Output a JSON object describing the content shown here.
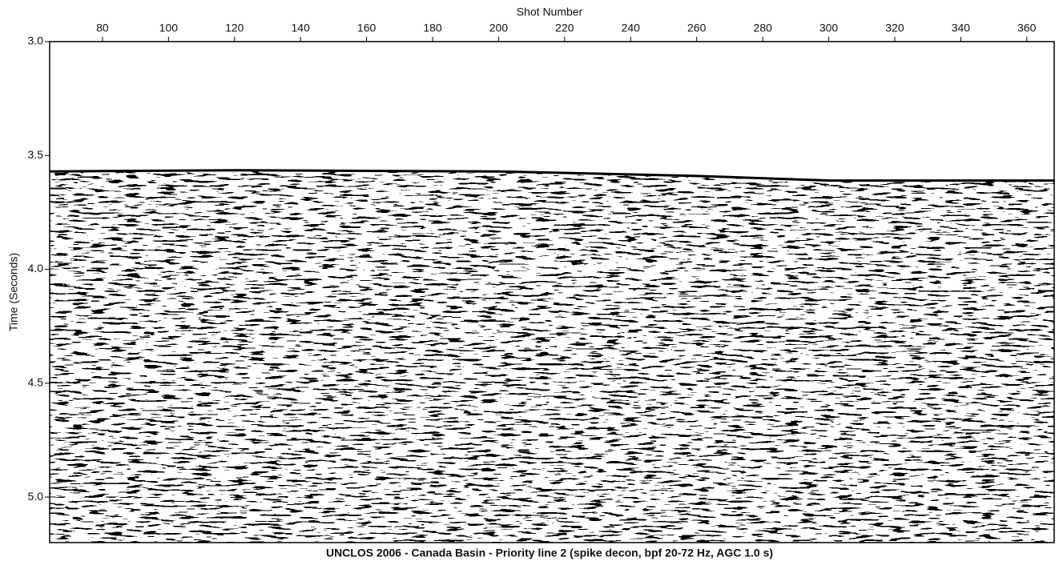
{
  "chart_data": {
    "type": "seismic",
    "title": "UNCLOS 2006 - Canada Basin - Priority line 2 (spike decon, bpf 20-72 Hz, AGC 1.0 s)",
    "x_label": "Shot Number",
    "y_label": "Time (Seconds)",
    "xlim": [
      64,
      368.3
    ],
    "ylim": [
      3.0,
      5.2
    ],
    "xticks": [
      80,
      100,
      120,
      140,
      160,
      180,
      200,
      220,
      240,
      260,
      280,
      300,
      320,
      340,
      360
    ],
    "yticks": [
      {
        "value": 3.0,
        "label": "3.0"
      },
      3.5,
      {
        "value": 4.0,
        "label": "4.0"
      },
      4.5,
      {
        "value": 5.0,
        "label": "5.0"
      }
    ],
    "series": [
      {
        "color": "#000000",
        "x": [
          64,
          120,
          200,
          260,
          300,
          340,
          368.3
        ],
        "values": [
          3.57,
          3.565,
          3.57,
          3.59,
          3.61,
          3.61,
          3.61
        ]
      }
    ]
  }
}
